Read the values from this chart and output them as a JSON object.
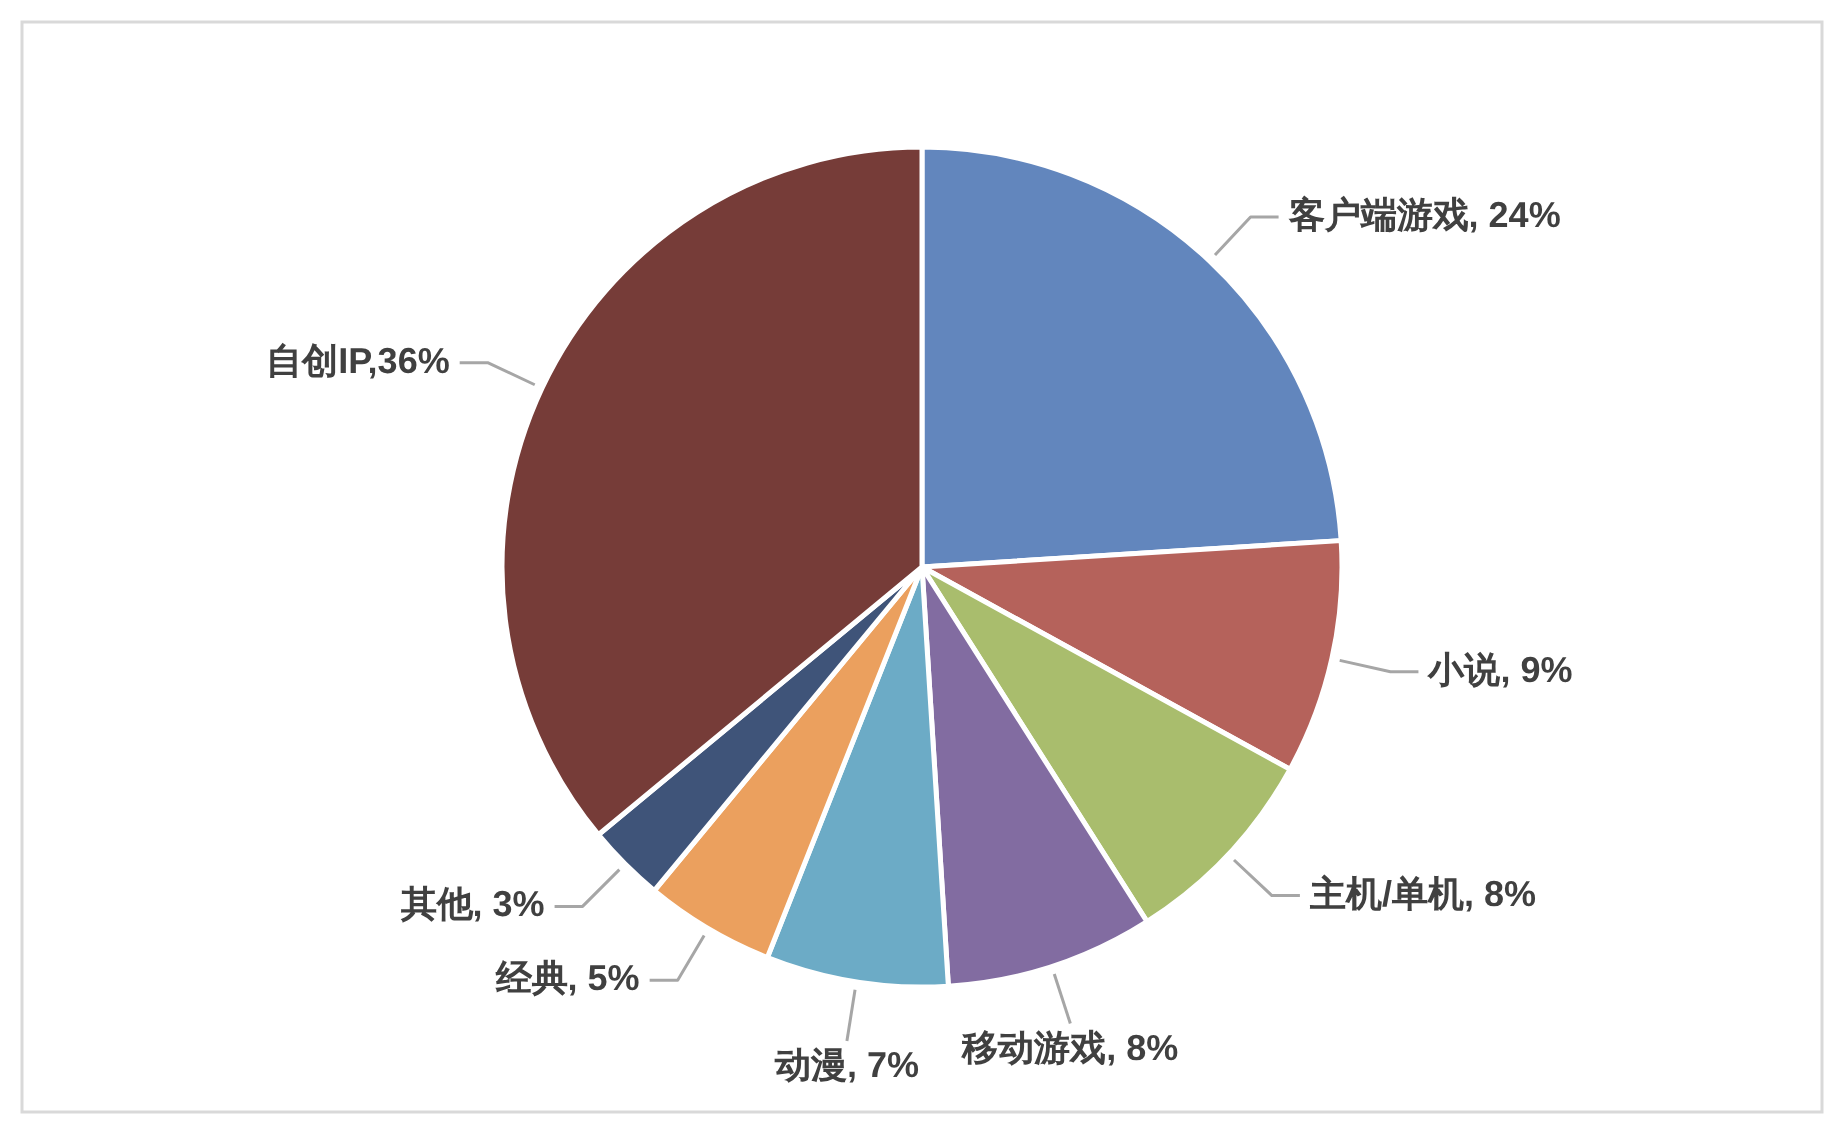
{
  "chart_data": {
    "type": "pie",
    "categories": [
      "客户端游戏",
      "小说",
      "主机/单机",
      "移动游戏",
      "动漫",
      "经典",
      "其他",
      "自创IP"
    ],
    "values": [
      24,
      9,
      8,
      8,
      7,
      5,
      3,
      36
    ],
    "colors": [
      "#6286bd",
      "#b5625b",
      "#a9bd6d",
      "#826ca1",
      "#6cabc6",
      "#eba05e",
      "#3f5479",
      "#763c38"
    ],
    "value_labels": [
      ", 24%",
      ", 9%",
      ", 8%",
      ", 8%",
      ", 7%",
      ", 5%",
      ", 3%",
      ",36%"
    ]
  }
}
